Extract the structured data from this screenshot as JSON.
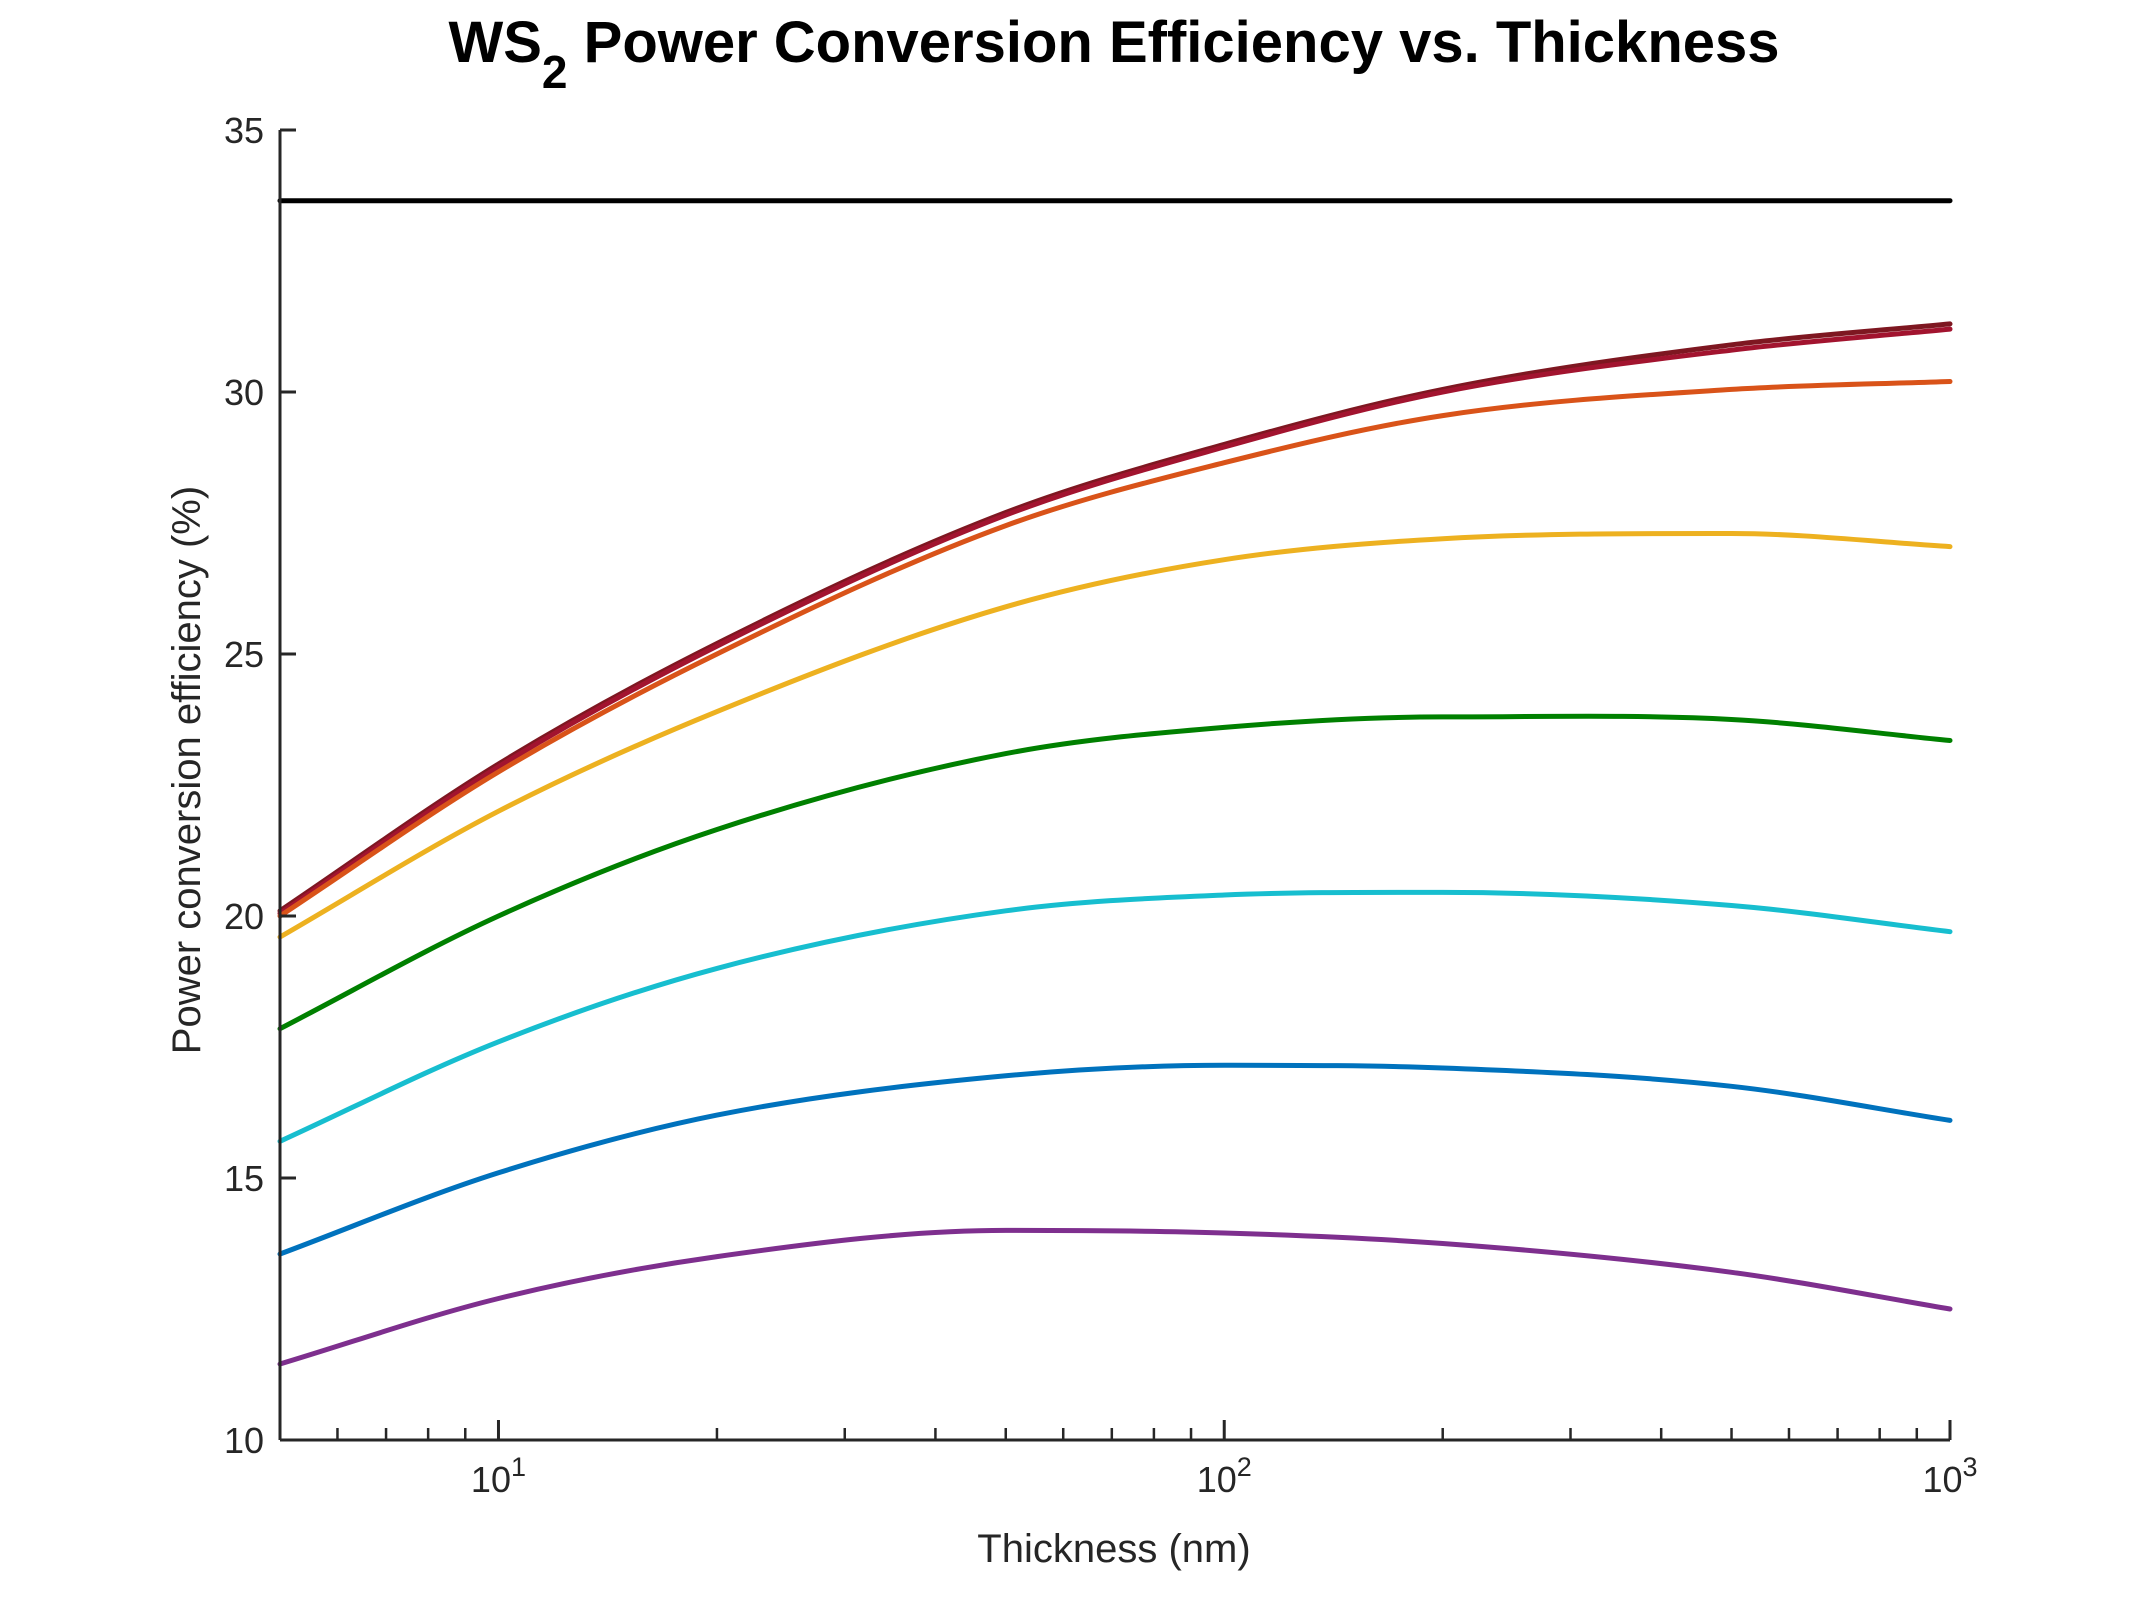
{
  "chart_data": {
    "type": "line",
    "title": {
      "prefix": "WS",
      "subscript": "2",
      "suffix": " Power Conversion Efficiency vs. Thickness"
    },
    "xlabel": "Thickness (nm)",
    "ylabel": "Power conversion efficiency (%)",
    "x_scale": "log",
    "xlim": [
      5,
      1000
    ],
    "ylim": [
      10,
      35
    ],
    "grid": false,
    "legend": "none",
    "x_ticks": [
      {
        "value": 10,
        "base": "10",
        "exp": "1"
      },
      {
        "value": 100,
        "base": "10",
        "exp": "2"
      },
      {
        "value": 1000,
        "base": "10",
        "exp": "3"
      }
    ],
    "y_ticks": [
      "10",
      "15",
      "20",
      "25",
      "30",
      "35"
    ],
    "x": [
      5,
      10,
      20,
      50,
      100,
      200,
      500,
      1000
    ],
    "series": [
      {
        "color": "#000000",
        "values": [
          33.65,
          33.65,
          33.65,
          33.65,
          33.65,
          33.65,
          33.65,
          33.65
        ]
      },
      {
        "color": "#7e1721",
        "values": [
          20.1,
          22.9,
          25.2,
          27.7,
          29.0,
          30.05,
          30.9,
          31.3
        ]
      },
      {
        "color": "#a2142f",
        "values": [
          20.05,
          22.85,
          25.15,
          27.65,
          28.95,
          30.0,
          30.8,
          31.2
        ]
      },
      {
        "color": "#d95319",
        "values": [
          20.0,
          22.75,
          25.0,
          27.45,
          28.65,
          29.55,
          30.05,
          30.2
        ]
      },
      {
        "color": "#edb120",
        "values": [
          19.6,
          22.0,
          23.9,
          25.9,
          26.8,
          27.2,
          27.3,
          27.05
        ]
      },
      {
        "color": "#008000",
        "values": [
          17.85,
          20.0,
          21.65,
          23.1,
          23.6,
          23.8,
          23.75,
          23.35
        ]
      },
      {
        "color": "#17becf",
        "values": [
          15.7,
          17.6,
          19.0,
          20.1,
          20.4,
          20.45,
          20.2,
          19.7
        ]
      },
      {
        "color": "#0072bd",
        "values": [
          13.55,
          15.1,
          16.2,
          16.95,
          17.15,
          17.1,
          16.75,
          16.1
        ]
      },
      {
        "color": "#7e2f8e",
        "values": [
          11.45,
          12.7,
          13.5,
          14.0,
          13.95,
          13.75,
          13.2,
          12.5
        ]
      }
    ]
  }
}
